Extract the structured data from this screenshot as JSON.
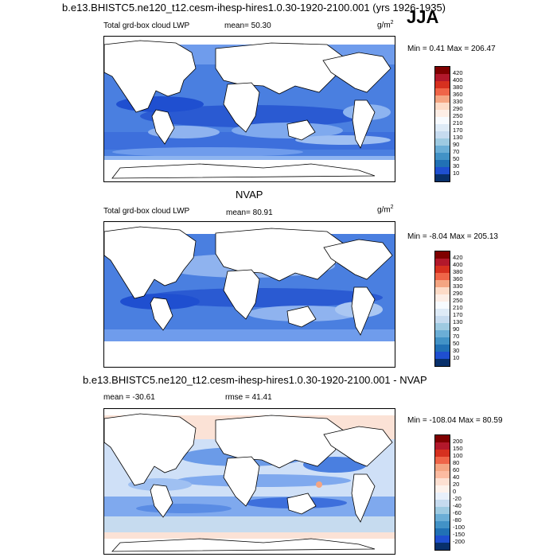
{
  "header": {
    "title": "b.e13.BHISTC5.ne120_t12.cesm-ihesp-hires1.0.30-1920-2100.001 (yrs 1926-1935)",
    "season": "JJA"
  },
  "panels": [
    {
      "id": "model",
      "left_label": "Total grd-box cloud LWP",
      "stat": "mean=  50.30",
      "units": "g/m",
      "units_exp": "2",
      "minmax": "Min =   0.41 Max = 206.47",
      "colorbar": {
        "labels": [
          "420",
          "400",
          "380",
          "360",
          "330",
          "290",
          "250",
          "210",
          "170",
          "130",
          "90",
          "70",
          "50",
          "30",
          "10"
        ],
        "colors": [
          "#7f0000",
          "#b2182b",
          "#d6301f",
          "#ef6548",
          "#f4a582",
          "#fddbc7",
          "#fdeee6",
          "#f7fbff",
          "#deebf7",
          "#c6dbef",
          "#9ecae1",
          "#6baed6",
          "#4292c6",
          "#2171b5",
          "#1f4fd0",
          "#08306b"
        ]
      }
    },
    {
      "id": "obs",
      "panel_title": "NVAP",
      "left_label": "Total grd-box cloud LWP",
      "stat": "mean=  80.91",
      "units": "g/m",
      "units_exp": "2",
      "minmax": "Min =  -8.04 Max = 205.13",
      "colorbar": {
        "labels": [
          "420",
          "400",
          "380",
          "360",
          "330",
          "290",
          "250",
          "210",
          "170",
          "130",
          "90",
          "70",
          "50",
          "30",
          "10"
        ],
        "colors": [
          "#7f0000",
          "#b2182b",
          "#d6301f",
          "#ef6548",
          "#f4a582",
          "#fddbc7",
          "#fdeee6",
          "#f7fbff",
          "#deebf7",
          "#c6dbef",
          "#9ecae1",
          "#6baed6",
          "#4292c6",
          "#2171b5",
          "#1f4fd0",
          "#08306b"
        ]
      }
    },
    {
      "id": "diff",
      "panel_title": "b.e13.BHISTC5.ne120_t12.cesm-ihesp-hires1.0.30-1920-2100.001 - NVAP",
      "left_label": "mean = -30.61",
      "stat": "rmse =  41.41",
      "minmax": "Min = -108.04 Max =  80.59",
      "colorbar": {
        "labels": [
          "200",
          "150",
          "100",
          "80",
          "60",
          "40",
          "20",
          "0",
          "-20",
          "-40",
          "-60",
          "-80",
          "-100",
          "-150",
          "-200"
        ],
        "colors": [
          "#7f0000",
          "#b2182b",
          "#d6301f",
          "#ef6548",
          "#f4a582",
          "#fcbba1",
          "#fde0d2",
          "#fdf2ec",
          "#e8f0fb",
          "#c6dbef",
          "#9ecae1",
          "#6baed6",
          "#4292c6",
          "#2171b5",
          "#1f4fd0",
          "#08306b"
        ]
      }
    }
  ]
}
